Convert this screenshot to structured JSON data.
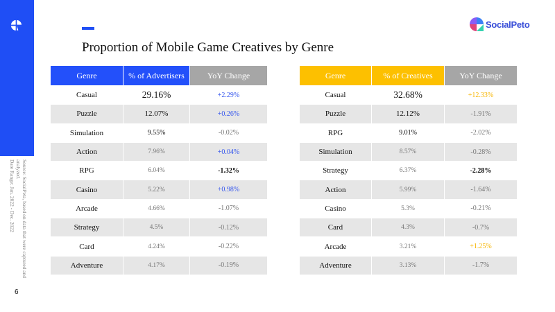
{
  "page": {
    "title": "Proportion of Mobile Game Creatives by Genre",
    "page_number": "6",
    "source_lines": [
      "Source: SocialPeta, based on data that were captured and analyzed.",
      "Date Range: Jan. 2022 - Dec. 2022"
    ],
    "brand": "SocialPeto",
    "accent_color": "#1f4ef5"
  },
  "advertisers_table": {
    "headers": [
      "Genre",
      "% of Advertisers",
      "YoY Change"
    ],
    "header_color": "#2350fa",
    "rows": [
      {
        "genre": "Casual",
        "value": "29.16%",
        "change": "+2.29%",
        "tone": "blue"
      },
      {
        "genre": "Puzzle",
        "value": "12.07%",
        "change": "+0.26%",
        "tone": "blue"
      },
      {
        "genre": "Simulation",
        "value": "9.55%",
        "change": "-0.02%",
        "tone": "gray"
      },
      {
        "genre": "Action",
        "value": "7.96%",
        "change": "+0.04%",
        "tone": "blue"
      },
      {
        "genre": "RPG",
        "value": "6.04%",
        "change": "-1.32%",
        "tone": "black"
      },
      {
        "genre": "Casino",
        "value": "5.22%",
        "change": "+0.98%",
        "tone": "blue"
      },
      {
        "genre": "Arcade",
        "value": "4.66%",
        "change": "-1.07%",
        "tone": "gray"
      },
      {
        "genre": "Strategy",
        "value": "4.5%",
        "change": "-0.12%",
        "tone": "gray"
      },
      {
        "genre": "Card",
        "value": "4.24%",
        "change": "-0.22%",
        "tone": "gray"
      },
      {
        "genre": "Adventure",
        "value": "4.17%",
        "change": "-0.19%",
        "tone": "gray"
      }
    ]
  },
  "creatives_table": {
    "headers": [
      "Genre",
      "% of Creatives",
      "YoY Change"
    ],
    "header_color": "#fdc000",
    "rows": [
      {
        "genre": "Casual",
        "value": "32.68%",
        "change": "+12.33%",
        "tone": "orange"
      },
      {
        "genre": "Puzzle",
        "value": "12.12%",
        "change": "-1.91%",
        "tone": "gray"
      },
      {
        "genre": "RPG",
        "value": "9.01%",
        "change": "-2.02%",
        "tone": "gray"
      },
      {
        "genre": "Simulation",
        "value": "8.57%",
        "change": "-0.28%",
        "tone": "gray"
      },
      {
        "genre": "Strategy",
        "value": "6.37%",
        "change": "-2.28%",
        "tone": "black"
      },
      {
        "genre": "Action",
        "value": "5.99%",
        "change": "-1.64%",
        "tone": "gray"
      },
      {
        "genre": "Casino",
        "value": "5.3%",
        "change": "-0.21%",
        "tone": "gray"
      },
      {
        "genre": "Card",
        "value": "4.3%",
        "change": "-0.7%",
        "tone": "gray"
      },
      {
        "genre": "Arcade",
        "value": "3.21%",
        "change": "+1.25%",
        "tone": "orange"
      },
      {
        "genre": "Adventure",
        "value": "3.13%",
        "change": "-1.7%",
        "tone": "gray"
      }
    ]
  }
}
